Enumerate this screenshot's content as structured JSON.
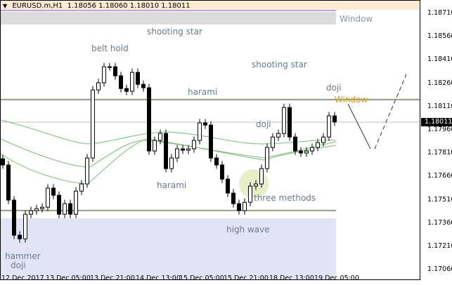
{
  "header": {
    "symbol": "EURUSD.m,H1",
    "open": "1.18056",
    "high": "1.18060",
    "low": "1.18010",
    "close": "1.18011"
  },
  "current_price": "1.18011",
  "colors": {
    "bull": "#ffffff",
    "bear": "#000000",
    "ma": "#6aa86a",
    "level": "#2f4f4f",
    "zone_top": "#dcdcdc",
    "zone_bottom": "#e3e4f6",
    "highlight": "#e6efc8",
    "accent": "#d4a017"
  },
  "annotations": {
    "window_top": "Window",
    "window_right": "Window",
    "belt_hold": "belt hold",
    "shooting_star_1": "shooting star",
    "shooting_star_2": "shooting star",
    "harami_1": "harami",
    "harami_2": "harami",
    "doji_1": "doji",
    "doji_2": "doji",
    "three_methods": "three methods",
    "high_wave": "high wave",
    "hammer": "hammer",
    "doji_3": "doji"
  },
  "chart_data": {
    "type": "candlestick",
    "ylim": [
      1.17,
      1.188
    ],
    "y_ticks": [
      "1.18710",
      "1.18560",
      "1.18410",
      "1.18260",
      "1.18110",
      "1.17960",
      "1.17810",
      "1.17660",
      "1.17510",
      "1.17360",
      "1.17210",
      "1.17060"
    ],
    "x_ticks": [
      "12 Dec 2017",
      "13 Dec 05:00",
      "13 Dec 21:00",
      "14 Dec 13:00",
      "15 Dec 05:00",
      "15 Dec 21:00",
      "18 Dec 13:00",
      "19 Dec 05:00"
    ],
    "closes": [
      1.17734,
      1.17508,
      1.17282,
      1.17259,
      1.17417,
      1.1744,
      1.17453,
      1.17462,
      1.17585,
      1.17539,
      1.17417,
      1.17485,
      1.17417,
      1.17566,
      1.17612,
      1.17779,
      1.18217,
      1.18263,
      1.18366,
      1.18366,
      1.18308,
      1.18226,
      1.18208,
      1.1833,
      1.18253,
      1.18231,
      1.17824,
      1.17892,
      1.17937,
      1.17711,
      1.17779,
      1.17838,
      1.17829,
      1.17838,
      1.17892,
      1.18005,
      1.17991,
      1.17779,
      1.17734,
      1.17643,
      1.17553,
      1.17485,
      1.1744,
      1.17494,
      1.17598,
      1.17612,
      1.17711,
      1.17847,
      1.17914,
      1.17937,
      1.18104,
      1.17914,
      1.17824,
      1.17811,
      1.17824,
      1.17847,
      1.17878,
      1.17914,
      1.1805,
      1.18011
    ],
    "levels": [
      1.1816,
      1.1745
    ]
  }
}
